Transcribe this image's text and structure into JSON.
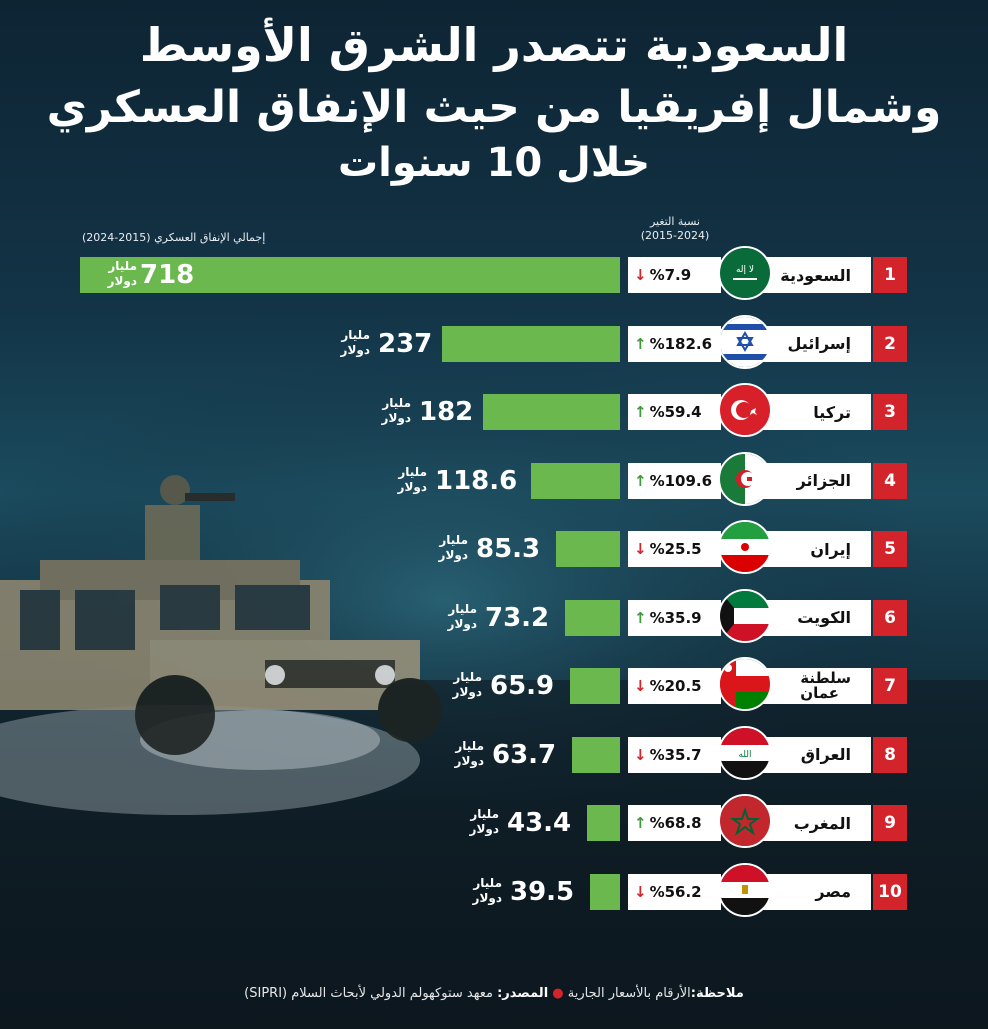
{
  "title_lines": [
    "السعودية تتصدر الشرق الأوسط",
    "وشمال إفريقيا من حيث الإنفاق العسكري",
    "خلال 10 سنوات"
  ],
  "header": {
    "change_label": "نسبة التغير",
    "change_period": "(2015-2024)",
    "total_label": "إجمالي الإنفاق العسكري (2015-2024)"
  },
  "unit_line1": "مليار",
  "unit_line2": "دولار",
  "footer": {
    "note_label": "ملاحظة:",
    "note_text": "الأرقام بالأسعار الجارية",
    "source_label": "المصدر:",
    "source_text": "معهد ستوكهولم الدولي لأبحاث السلام (SIPRI)"
  },
  "colors": {
    "bar": "#6ab84e",
    "rank_box": "#d3242c",
    "up_arrow": "#3e9a3a",
    "down_arrow": "#d3242c"
  },
  "rows": [
    {
      "rank": "1",
      "name": "السعودية",
      "name2": "",
      "flag": "saudi-flag-icon",
      "change_text": "%7.9",
      "direction": "down",
      "value_text": "718"
    },
    {
      "rank": "2",
      "name": "إسرائيل",
      "name2": "",
      "flag": "israel-flag-icon",
      "change_text": "%182.6",
      "direction": "up",
      "value_text": "237"
    },
    {
      "rank": "3",
      "name": "تركيا",
      "name2": "",
      "flag": "turkey-flag-icon",
      "change_text": "%59.4",
      "direction": "up",
      "value_text": "182"
    },
    {
      "rank": "4",
      "name": "الجزائر",
      "name2": "",
      "flag": "algeria-flag-icon",
      "change_text": "%109.6",
      "direction": "up",
      "value_text": "118.6"
    },
    {
      "rank": "5",
      "name": "إيران",
      "name2": "",
      "flag": "iran-flag-icon",
      "change_text": "%25.5",
      "direction": "down",
      "value_text": "85.3"
    },
    {
      "rank": "6",
      "name": "الكويت",
      "name2": "",
      "flag": "kuwait-flag-icon",
      "change_text": "%35.9",
      "direction": "up",
      "value_text": "73.2"
    },
    {
      "rank": "7",
      "name": "سلطنة",
      "name2": "عمان",
      "flag": "oman-flag-icon",
      "change_text": "%20.5",
      "direction": "down",
      "value_text": "65.9"
    },
    {
      "rank": "8",
      "name": "العراق",
      "name2": "",
      "flag": "iraq-flag-icon",
      "change_text": "%35.7",
      "direction": "down",
      "value_text": "63.7"
    },
    {
      "rank": "9",
      "name": "المغرب",
      "name2": "",
      "flag": "morocco-flag-icon",
      "change_text": "%68.8",
      "direction": "up",
      "value_text": "43.4"
    },
    {
      "rank": "10",
      "name": "مصر",
      "name2": "",
      "flag": "egypt-flag-icon",
      "change_text": "%56.2",
      "direction": "down",
      "value_text": "39.5"
    }
  ],
  "chart_data": {
    "type": "bar",
    "title": "السعودية تتصدر الشرق الأوسط وشمال إفريقيا من حيث الإنفاق العسكري خلال 10 سنوات",
    "categories": [
      "السعودية",
      "إسرائيل",
      "تركيا",
      "الجزائر",
      "إيران",
      "الكويت",
      "سلطنة عمان",
      "العراق",
      "المغرب",
      "مصر"
    ],
    "values": [
      718,
      237,
      182,
      118.6,
      85.3,
      73.2,
      65.9,
      63.7,
      43.4,
      39.5
    ],
    "change_percent": [
      -7.9,
      182.6,
      59.4,
      109.6,
      -25.5,
      35.9,
      -20.5,
      -35.7,
      68.8,
      -56.2
    ],
    "orientation": "horizontal"
  }
}
